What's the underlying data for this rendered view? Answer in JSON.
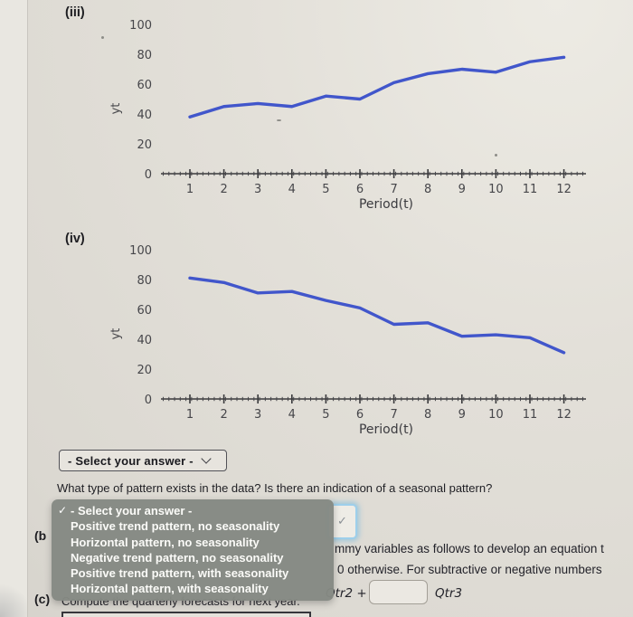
{
  "chart_data": [
    {
      "type": "line",
      "title": "(iii)",
      "x": [
        1,
        2,
        3,
        4,
        5,
        6,
        7,
        8,
        9,
        10,
        11,
        12
      ],
      "values": [
        38,
        45,
        47,
        45,
        52,
        50,
        61,
        67,
        70,
        68,
        75,
        78
      ],
      "xlabel": "Period(t)",
      "ylabel": "yt",
      "ylim": [
        0,
        100
      ],
      "yticks": [
        0,
        20,
        40,
        60,
        80,
        100
      ],
      "grid": "off",
      "line_color": "#4156cb"
    },
    {
      "type": "line",
      "title": "(iv)",
      "x": [
        1,
        2,
        3,
        4,
        5,
        6,
        7,
        8,
        9,
        10,
        11,
        12
      ],
      "values": [
        81,
        78,
        71,
        72,
        66,
        61,
        50,
        51,
        42,
        43,
        41,
        31
      ],
      "xlabel": "Period(t)",
      "ylabel": "yt",
      "ylim": [
        0,
        100
      ],
      "yticks": [
        0,
        20,
        40,
        60,
        80,
        100
      ],
      "grid": "off",
      "line_color": "#4156cb"
    }
  ],
  "select_closed": {
    "label": "- Select your answer -"
  },
  "question": "What type of pattern exists in the data? Is there an indication of a seasonal pattern?",
  "menu": {
    "checkmark": "✓",
    "items": [
      "- Select your answer -",
      "Positive trend pattern, no seasonality",
      "Horizontal pattern, no seasonality",
      "Negative trend pattern, no seasonality",
      "Positive trend pattern, with seasonality",
      "Horizontal pattern, with seasonality"
    ]
  },
  "mini_select": {
    "glyph": "✓"
  },
  "part_b": {
    "label": "(b",
    "line1": "mmy variables as follows to develop an equation t",
    "line2": "0 otherwise. For subtractive or negative numbers",
    "qtr2": "Qtr2 +",
    "qtr3": "Qtr3"
  },
  "part_c": {
    "label": "(c)",
    "text": "Compute the quarterly forecasts for next year."
  },
  "colors": {
    "line": "#4156cb",
    "menu_bg": "#858985",
    "focus_ring": "#9ecfeb",
    "page_bg": "#e3e0d9"
  }
}
